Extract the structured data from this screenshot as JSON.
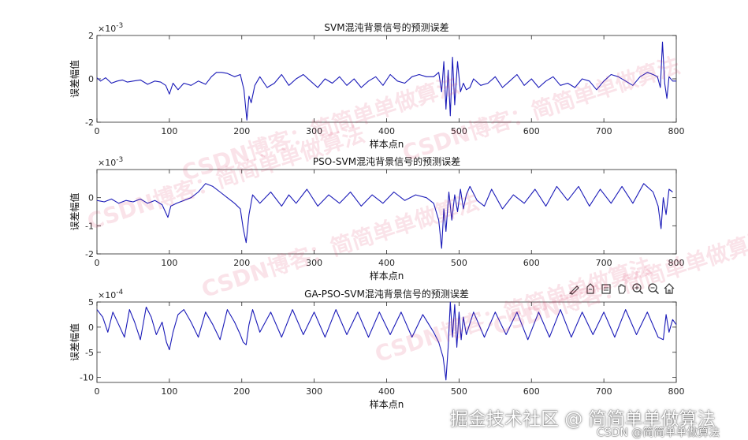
{
  "chart_data": [
    {
      "type": "line",
      "title": "SVM混沌背景信号的预测误差",
      "xlabel": "样本点n",
      "ylabel": "误差幅值",
      "exponent": "-3",
      "xlim": [
        0,
        800
      ],
      "ylim": [
        -2,
        2
      ],
      "xticks": [
        0,
        100,
        200,
        300,
        400,
        500,
        600,
        700,
        800
      ],
      "yticks": [
        -2,
        0,
        2
      ],
      "line_color": "#1a1ab8",
      "series": [
        {
          "x": [
            0,
            5,
            12,
            20,
            28,
            35,
            42,
            50,
            60,
            70,
            80,
            88,
            95,
            100,
            105,
            112,
            120,
            130,
            140,
            150,
            158,
            165,
            172,
            180,
            190,
            198,
            203,
            207,
            210,
            213,
            218,
            225,
            235,
            245,
            255,
            265,
            275,
            285,
            295,
            305,
            315,
            325,
            335,
            345,
            355,
            365,
            375,
            385,
            395,
            405,
            415,
            425,
            435,
            445,
            455,
            465,
            472,
            476,
            479,
            482,
            485,
            488,
            491,
            494,
            498,
            502,
            506,
            510,
            515,
            520,
            530,
            540,
            550,
            560,
            570,
            580,
            590,
            600,
            610,
            620,
            630,
            640,
            650,
            660,
            670,
            680,
            690,
            700,
            710,
            720,
            730,
            740,
            750,
            760,
            768,
            774,
            778,
            781,
            784,
            787,
            790,
            795,
            800
          ],
          "y": [
            0.05,
            -0.1,
            0.05,
            -0.2,
            -0.1,
            -0.05,
            -0.15,
            -0.1,
            -0.05,
            -0.25,
            -0.1,
            -0.15,
            -0.3,
            -0.7,
            -0.2,
            -0.5,
            -0.2,
            -0.3,
            -0.1,
            -0.25,
            0.1,
            0.3,
            0.3,
            0.25,
            0.1,
            0.2,
            -0.5,
            -1.9,
            -0.8,
            -1.1,
            -0.3,
            0.1,
            -0.4,
            -0.2,
            0.2,
            -0.3,
            0.0,
            0.2,
            -0.1,
            -0.4,
            0.0,
            -0.2,
            0.1,
            -0.3,
            0.0,
            -0.4,
            -0.1,
            0.1,
            -0.3,
            0.2,
            -0.1,
            -0.2,
            0.1,
            0.2,
            0.1,
            0.1,
            0.3,
            -0.6,
            0.8,
            -1.4,
            0.4,
            -1.7,
            1.0,
            -1.2,
            0.8,
            -0.6,
            -0.2,
            -0.5,
            -0.4,
            0.0,
            -0.3,
            -0.2,
            0.1,
            -0.4,
            -0.1,
            0.2,
            -0.3,
            0.0,
            -0.4,
            -0.1,
            0.1,
            -0.3,
            -0.2,
            -0.4,
            0.0,
            -0.1,
            -0.5,
            -0.1,
            0.2,
            0.1,
            -0.1,
            -0.3,
            0.1,
            0.3,
            0.2,
            0.1,
            -0.4,
            1.7,
            -0.2,
            -0.9,
            0.1,
            -0.1,
            -0.1
          ]
        }
      ]
    },
    {
      "type": "line",
      "title": "PSO-SVM混沌背景信号的预测误差",
      "xlabel": "样本点n",
      "ylabel": "误差幅值",
      "exponent": "-3",
      "xlim": [
        0,
        800
      ],
      "ylim": [
        -2,
        1
      ],
      "xticks": [
        0,
        100,
        200,
        300,
        400,
        500,
        600,
        700,
        800
      ],
      "yticks": [
        -2,
        -1,
        0
      ],
      "line_color": "#1a1ab8",
      "series": [
        {
          "x": [
            0,
            10,
            20,
            30,
            40,
            50,
            60,
            70,
            80,
            90,
            98,
            102,
            110,
            120,
            130,
            140,
            150,
            160,
            170,
            180,
            190,
            198,
            202,
            206,
            210,
            215,
            225,
            240,
            255,
            265,
            275,
            290,
            305,
            320,
            335,
            350,
            365,
            380,
            395,
            410,
            425,
            440,
            455,
            465,
            472,
            476,
            479,
            482,
            486,
            490,
            494,
            498,
            502,
            506,
            510,
            515,
            525,
            535,
            545,
            560,
            575,
            590,
            605,
            620,
            635,
            650,
            665,
            680,
            695,
            710,
            725,
            740,
            755,
            768,
            775,
            779,
            782,
            786,
            790,
            795
          ],
          "y": [
            -0.1,
            -0.15,
            -0.05,
            -0.2,
            -0.1,
            -0.15,
            -0.05,
            -0.2,
            -0.1,
            -0.25,
            -0.7,
            -0.3,
            -0.2,
            -0.1,
            0.0,
            0.2,
            0.5,
            0.4,
            0.2,
            0.0,
            -0.2,
            -0.4,
            -1.1,
            -1.6,
            -0.6,
            0.1,
            -0.2,
            0.2,
            -0.3,
            0.1,
            -0.2,
            0.3,
            -0.3,
            0.1,
            -0.2,
            0.2,
            -0.3,
            0.1,
            -0.2,
            0.2,
            -0.1,
            0.1,
            0.0,
            -0.2,
            -0.8,
            -1.8,
            -0.4,
            -1.2,
            0.2,
            -0.8,
            0.1,
            -0.5,
            0.3,
            -0.4,
            0.1,
            0.4,
            -0.1,
            -0.3,
            0.3,
            -0.4,
            0.1,
            -0.2,
            0.3,
            -0.3,
            0.4,
            -0.1,
            0.4,
            -0.3,
            0.3,
            -0.2,
            0.4,
            -0.2,
            0.5,
            0.2,
            -0.3,
            -1.1,
            0.0,
            -0.6,
            0.3,
            0.2
          ]
        }
      ]
    },
    {
      "type": "line",
      "title": "GA-PSO-SVM混沌背景信号的预测误差",
      "xlabel": "样本点n",
      "ylabel": "误差幅值",
      "exponent": "-4",
      "xlim": [
        0,
        800
      ],
      "ylim": [
        -11,
        5
      ],
      "xticks": [
        0,
        100,
        200,
        300,
        400,
        500,
        600,
        700,
        800
      ],
      "yticks": [
        -10,
        -5,
        0,
        5
      ],
      "line_color": "#1a1ab8",
      "series": [
        {
          "x": [
            0,
            8,
            15,
            22,
            30,
            38,
            45,
            52,
            60,
            68,
            75,
            82,
            90,
            96,
            100,
            105,
            112,
            120,
            130,
            140,
            150,
            160,
            170,
            180,
            190,
            198,
            202,
            206,
            210,
            215,
            225,
            240,
            255,
            270,
            285,
            300,
            315,
            330,
            345,
            360,
            375,
            390,
            405,
            420,
            435,
            450,
            465,
            472,
            478,
            482,
            485,
            488,
            491,
            494,
            497,
            500,
            503,
            506,
            510,
            520,
            535,
            550,
            565,
            580,
            595,
            610,
            625,
            640,
            655,
            670,
            685,
            700,
            715,
            730,
            745,
            760,
            775,
            782,
            786,
            790,
            795,
            800
          ],
          "y": [
            3.5,
            2.0,
            -1.0,
            3.0,
            0.5,
            -2.0,
            3.5,
            1.0,
            -2.5,
            4.0,
            2.0,
            -1.5,
            1.0,
            -3.0,
            -4.5,
            -1.0,
            2.5,
            3.5,
            1.0,
            -2.0,
            3.0,
            0.5,
            -2.5,
            3.5,
            1.0,
            -1.5,
            -3.0,
            -3.5,
            0.5,
            3.5,
            -1.0,
            3.0,
            -2.0,
            3.5,
            -1.5,
            3.0,
            -2.0,
            3.5,
            -1.5,
            3.0,
            -2.0,
            3.0,
            -1.5,
            3.0,
            -2.0,
            2.5,
            -1.0,
            -3.0,
            -6.0,
            -10.5,
            -4.0,
            5.0,
            -2.0,
            4.5,
            -4.0,
            3.0,
            -2.5,
            2.0,
            -1.5,
            3.0,
            -2.0,
            3.0,
            -1.5,
            3.0,
            -2.5,
            3.0,
            -2.0,
            3.5,
            -2.0,
            3.0,
            -1.5,
            3.0,
            -2.0,
            3.5,
            -1.5,
            3.0,
            -2.0,
            -2.5,
            2.5,
            -1.0,
            1.5,
            0.5
          ]
        }
      ]
    }
  ],
  "toolbar": [
    {
      "name": "brush-icon",
      "glyph": "✎"
    },
    {
      "name": "data-tips-icon",
      "glyph": "⌖"
    },
    {
      "name": "export-icon",
      "glyph": "▭"
    },
    {
      "name": "pan-icon",
      "glyph": "✋"
    },
    {
      "name": "zoom-in-icon",
      "glyph": "⊕"
    },
    {
      "name": "zoom-out-icon",
      "glyph": "⊖"
    },
    {
      "name": "home-icon",
      "glyph": "⌂"
    }
  ],
  "watermarks": [
    "CSDN博客：简简单单做算法"
  ],
  "footer": {
    "brand": "掘金技术社区 @ 简简单单做算法",
    "csdn": "CSDN @简简单单做算法"
  }
}
